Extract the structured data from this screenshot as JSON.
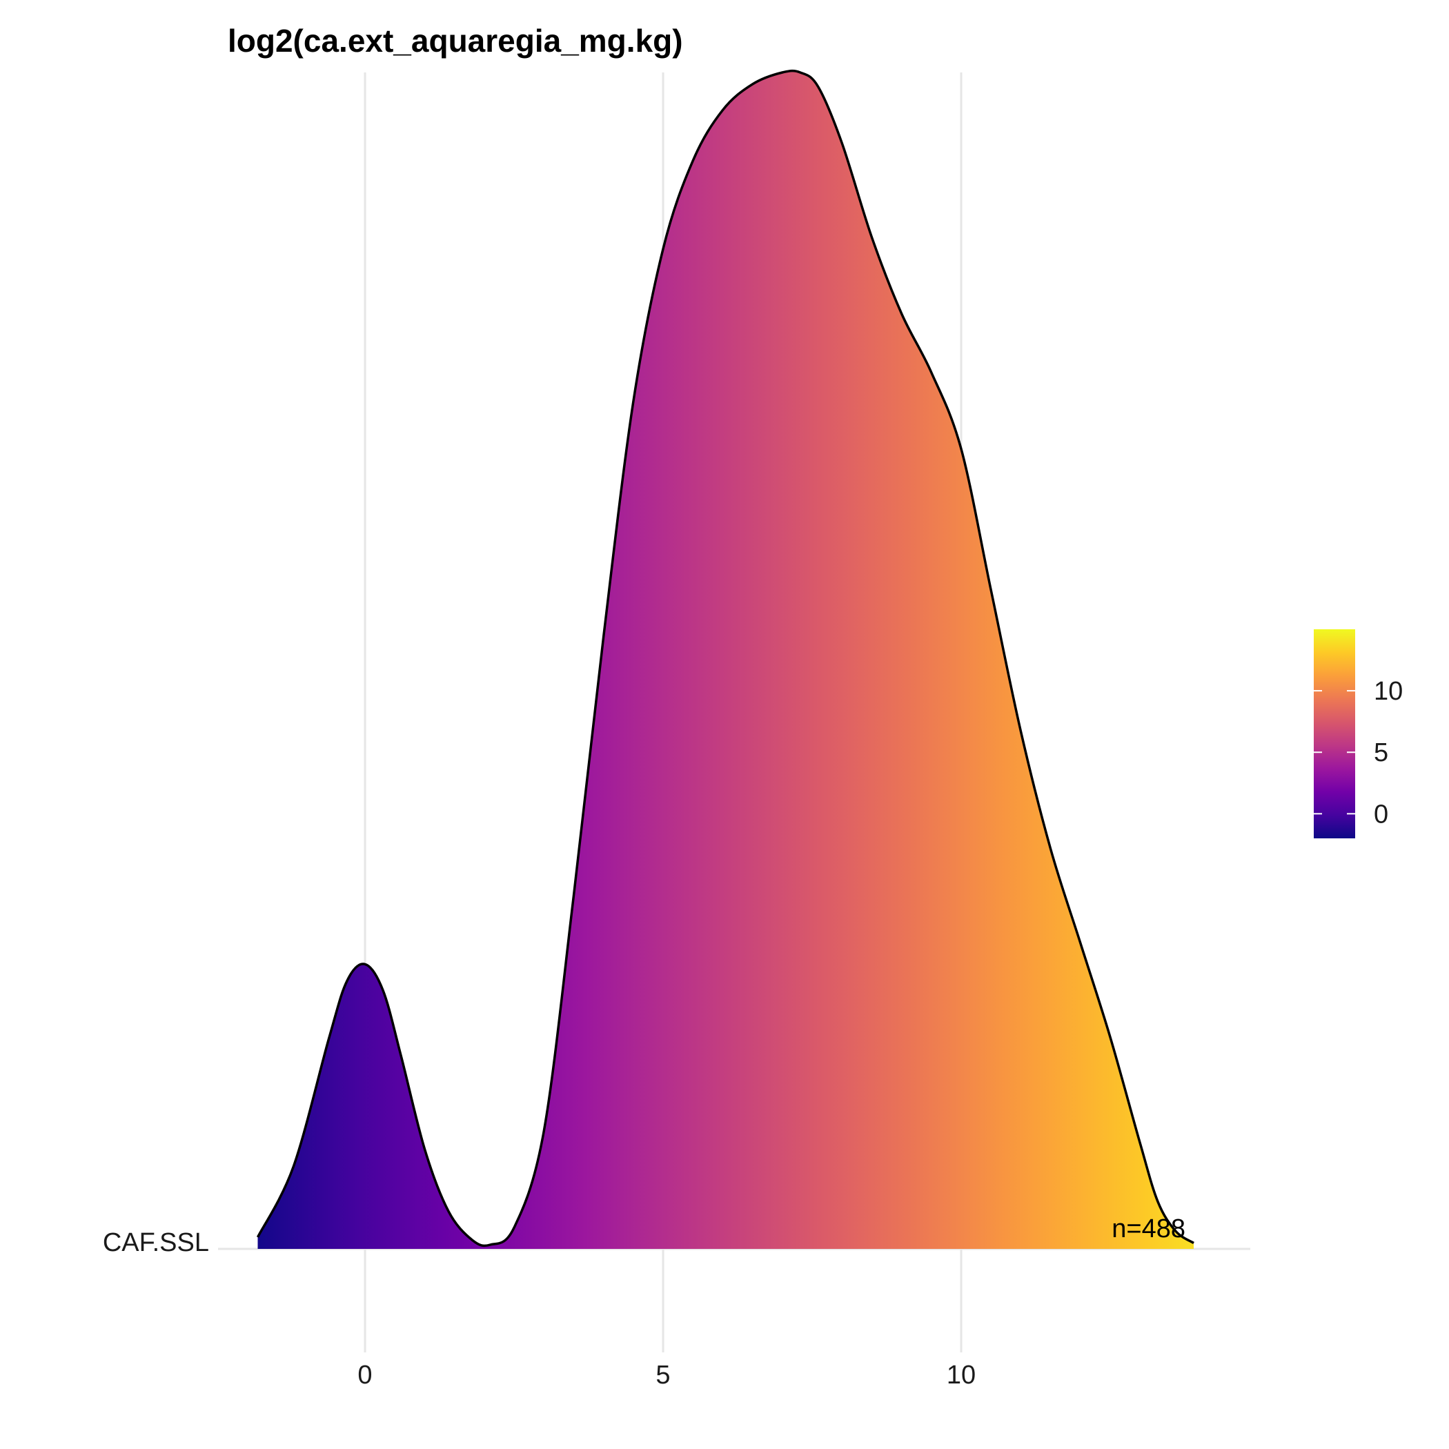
{
  "chart_data": {
    "type": "area",
    "title": "log2(ca.ext_aquaregia_mg.kg)",
    "xlabel": "",
    "ylabel": "",
    "category": "CAF.SSL",
    "annotation": "n=488",
    "xlim": [
      -2.5,
      14.5
    ],
    "xticks": [
      0,
      5,
      10
    ],
    "xtick_labels": [
      "0",
      "5",
      "10"
    ],
    "grid": true,
    "density": {
      "x": [
        -1.8,
        -1.2,
        -0.6,
        -0.3,
        0.0,
        0.3,
        0.6,
        1.0,
        1.4,
        1.8,
        2.1,
        2.5,
        3.0,
        3.5,
        4.0,
        4.5,
        5.0,
        5.5,
        6.0,
        6.5,
        7.0,
        7.3,
        7.6,
        8.0,
        8.5,
        9.0,
        9.5,
        10.0,
        10.5,
        11.0,
        11.5,
        12.0,
        12.5,
        13.0,
        13.3,
        13.6,
        13.9
      ],
      "y": [
        0.01,
        0.07,
        0.18,
        0.228,
        0.242,
        0.22,
        0.165,
        0.085,
        0.032,
        0.0075,
        0.0035,
        0.018,
        0.1,
        0.3,
        0.52,
        0.72,
        0.85,
        0.925,
        0.968,
        0.99,
        1.0,
        1.0,
        0.988,
        0.94,
        0.86,
        0.795,
        0.745,
        0.68,
        0.56,
        0.44,
        0.34,
        0.26,
        0.18,
        0.09,
        0.04,
        0.015,
        0.005
      ]
    },
    "legend": {
      "position": "right",
      "range": [
        -2,
        15
      ],
      "ticks": [
        0,
        5,
        10
      ],
      "tick_labels": [
        "0",
        "5",
        "10"
      ],
      "colormap": [
        "#0d0887",
        "#46039f",
        "#7201a8",
        "#9c179e",
        "#bd3786",
        "#d8576b",
        "#ed7953",
        "#fb9f3a",
        "#fdca26",
        "#f0f921"
      ]
    }
  }
}
